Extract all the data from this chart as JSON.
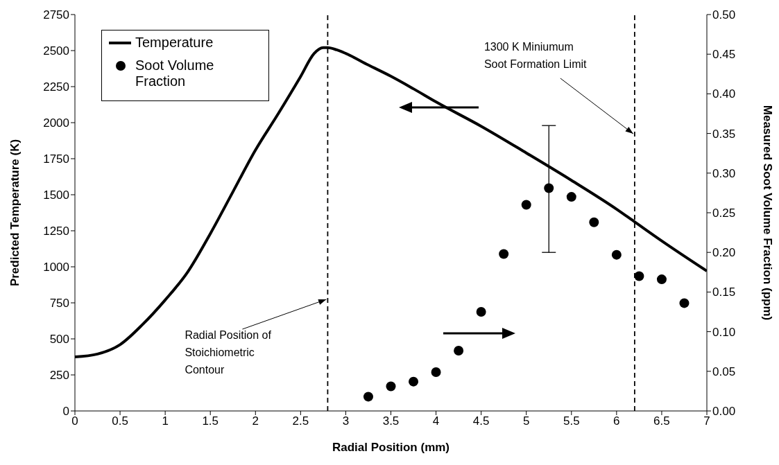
{
  "chart_data": {
    "type": "line",
    "xlabel": "Radial Position (mm)",
    "ylabel": "Predicted Temperature (K)",
    "y2label": "Measured Soot Volume Fraction (ppm)",
    "xlim": [
      0,
      7
    ],
    "xticks": [
      0,
      0.5,
      1,
      1.5,
      2,
      2.5,
      3,
      3.5,
      4,
      4.5,
      5,
      5.5,
      6,
      6.5,
      7
    ],
    "ylim": [
      0,
      2750
    ],
    "yticks": [
      0,
      250,
      500,
      750,
      1000,
      1250,
      1500,
      1750,
      2000,
      2250,
      2500,
      2750
    ],
    "y2lim": [
      0,
      0.5
    ],
    "y2ticks": [
      {
        "value": 0,
        "label": "0.00"
      },
      {
        "value": 0.05,
        "label": "0.05"
      },
      {
        "value": 0.1,
        "label": "0.10"
      },
      {
        "value": 0.15,
        "label": "0.15"
      },
      {
        "value": 0.2,
        "label": "0.20"
      },
      {
        "value": 0.25,
        "label": "0.25"
      },
      {
        "value": 0.3,
        "label": "0.30"
      },
      {
        "value": 0.35,
        "label": "0.35"
      },
      {
        "value": 0.4,
        "label": "0.40"
      },
      {
        "value": 0.45,
        "label": "0.45"
      },
      {
        "value": 0.5,
        "label": "0.50"
      }
    ],
    "grid": false,
    "legend": "top left",
    "series": [
      {
        "name": "Temperature",
        "color": "#000000",
        "line_style": "solid",
        "x": [
          0,
          0.25,
          0.5,
          0.75,
          1,
          1.25,
          1.5,
          1.75,
          2,
          2.25,
          2.5,
          2.65,
          2.75,
          2.8,
          2.9,
          3,
          3.25,
          3.5,
          3.75,
          4,
          4.5,
          5,
          5.5,
          6,
          6.2,
          6.5,
          7
        ],
        "values": [
          375,
          395,
          460,
          600,
          770,
          965,
          1230,
          1520,
          1810,
          2060,
          2320,
          2480,
          2520,
          2520,
          2505,
          2480,
          2400,
          2322,
          2235,
          2144,
          1975,
          1790,
          1600,
          1400,
          1312,
          1180,
          971
        ]
      },
      {
        "name": "Soot Volume Fraction",
        "type": "scatter",
        "axis": "y2",
        "color": "#000000",
        "marker": "circle",
        "x": [
          3.25,
          3.5,
          3.75,
          4,
          4.25,
          4.5,
          4.75,
          5,
          5.25,
          5.5,
          5.75,
          6,
          6.25,
          6.5,
          6.75
        ],
        "values": [
          0.018,
          0.031,
          0.037,
          0.049,
          0.076,
          0.125,
          0.198,
          0.26,
          0.281,
          0.27,
          0.238,
          0.197,
          0.17,
          0.166,
          0.136
        ],
        "errors": [
          null,
          null,
          null,
          null,
          null,
          null,
          null,
          null,
          [
            0.2,
            0.36
          ],
          null,
          null,
          null,
          null,
          null,
          null
        ]
      }
    ],
    "ref_lines": [
      {
        "axis": "x",
        "value": 2.8,
        "label": "Radial Position of Stoichiometric Contour",
        "color": "#000000",
        "line_style": "dashed"
      },
      {
        "axis": "x",
        "value": 6.2,
        "label": "1300 K Miniumum Soot Formation Limit",
        "color": "#000000",
        "line_style": "dashed"
      }
    ]
  }
}
